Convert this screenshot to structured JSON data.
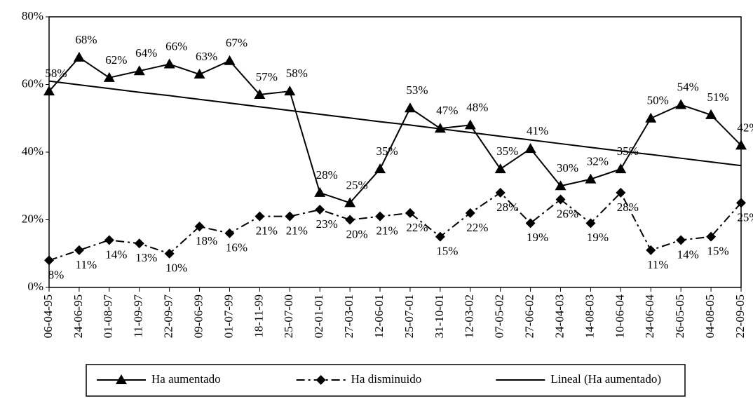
{
  "chart_data": {
    "type": "line",
    "categories": [
      "06-04-95",
      "24-06-95",
      "01-08-97",
      "11-09-97",
      "22-09-97",
      "09-06-99",
      "01-07-99",
      "18-11-99",
      "25-07-00",
      "02-01-01",
      "27-03-01",
      "12-06-01",
      "25-07-01",
      "31-10-01",
      "12-03-02",
      "07-05-02",
      "27-06-02",
      "24-04-03",
      "14-08-03",
      "10-06-04",
      "24-06-04",
      "26-05-05",
      "04-08-05",
      "22-09-05"
    ],
    "series": [
      {
        "name": "Ha aumentado",
        "color": "#000000",
        "marker": "triangle",
        "dash": "solid",
        "label_side": "above",
        "values": [
          58,
          68,
          62,
          64,
          66,
          63,
          67,
          57,
          58,
          28,
          25,
          35,
          53,
          47,
          48,
          35,
          41,
          30,
          32,
          35,
          50,
          54,
          51,
          42
        ],
        "value_labels": [
          "58%",
          "68%",
          "62%",
          "64%",
          "66%",
          "63%",
          "67%",
          "57%",
          "58%",
          "28%",
          "25%",
          "35%",
          "53%",
          "47%",
          "48%",
          "35%",
          "41%",
          "30%",
          "32%",
          "35%",
          "50%",
          "54%",
          "51%",
          "42%"
        ]
      },
      {
        "name": "Ha disminuido",
        "color": "#000000",
        "marker": "diamond",
        "dash": "dashed",
        "label_side": "below",
        "values": [
          8,
          11,
          14,
          13,
          10,
          18,
          16,
          21,
          21,
          23,
          20,
          21,
          22,
          15,
          22,
          28,
          19,
          26,
          19,
          28,
          11,
          14,
          15,
          25
        ],
        "value_labels": [
          "8%",
          "11%",
          "14%",
          "13%",
          "10%",
          "18%",
          "16%",
          "21%",
          "21%",
          "23%",
          "20%",
          "21%",
          "22%",
          "15%",
          "22%",
          "28%",
          "19%",
          "26%",
          "19%",
          "28%",
          "11%",
          "14%",
          "15%",
          "25%"
        ]
      },
      {
        "name": "Lineal (Ha aumentado)",
        "color": "#000000",
        "marker": "none",
        "dash": "solid",
        "values": [
          61,
          59.9,
          58.8,
          57.7,
          56.7,
          55.6,
          54.5,
          53.4,
          52.3,
          51.2,
          50.1,
          49.0,
          48.0,
          46.9,
          45.8,
          44.7,
          43.6,
          42.5,
          41.4,
          40.3,
          39.3,
          38.2,
          37.1,
          36
        ]
      }
    ],
    "ylim": [
      0,
      80
    ],
    "yticks": [
      {
        "value": 0,
        "label": "0%"
      },
      {
        "value": 20,
        "label": "20%"
      },
      {
        "value": 40,
        "label": "40%"
      },
      {
        "value": 60,
        "label": "60%"
      },
      {
        "value": 80,
        "label": "80%"
      }
    ],
    "legend": "bottom",
    "grid": false
  }
}
